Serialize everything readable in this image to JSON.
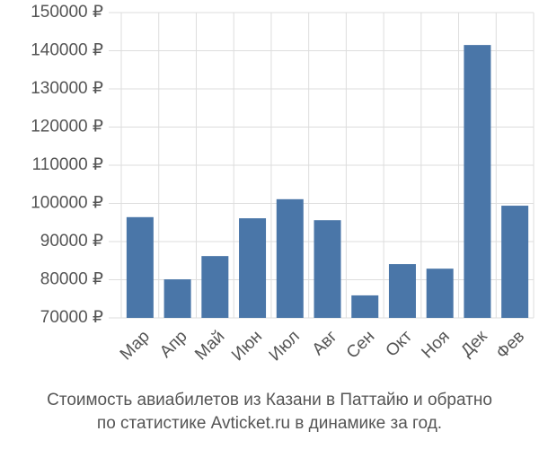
{
  "chart_data": {
    "type": "bar",
    "title": "Стоимость авиабилетов из Казани в Паттайю и обратно",
    "subtitle": "по статистике Avticket.ru в динамике за год.",
    "categories": [
      "Мар",
      "Апр",
      "Май",
      "Июн",
      "Июл",
      "Авг",
      "Сен",
      "Окт",
      "Ноя",
      "Дек",
      "Фев"
    ],
    "values": [
      96400,
      80100,
      86200,
      96100,
      101100,
      95600,
      75900,
      84100,
      82900,
      141500,
      99400
    ],
    "color": "#4a76a8",
    "ylim": [
      70000,
      150000
    ],
    "yticks": [
      {
        "value": 70000,
        "label": "70000 ₽"
      },
      {
        "value": 80000,
        "label": "80000 ₽"
      },
      {
        "value": 90000,
        "label": "90000 ₽"
      },
      {
        "value": 100000,
        "label": "100000 ₽"
      },
      {
        "value": 110000,
        "label": "110000 ₽"
      },
      {
        "value": 120000,
        "label": "120000 ₽"
      },
      {
        "value": 130000,
        "label": "130000 ₽"
      },
      {
        "value": 140000,
        "label": "140000 ₽"
      },
      {
        "value": 150000,
        "label": "150000 ₽"
      }
    ],
    "grid": true
  }
}
